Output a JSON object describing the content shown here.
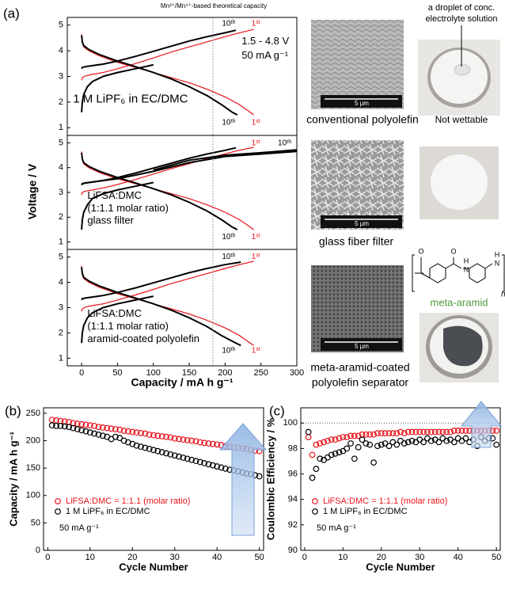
{
  "panel_labels": [
    "(a)",
    "(b)",
    "(c)"
  ],
  "chart_data": [
    {
      "type": "line",
      "xlim": [
        -20,
        300
      ],
      "ylim": [
        0.7,
        5.3
      ],
      "yticks": [
        1,
        2,
        3,
        4,
        5
      ],
      "theoretical_capacity": {
        "value": 183,
        "label": "Mn³⁺/Mn⁴⁺-based theoretical capacity"
      },
      "series": [
        {
          "color": "#e8141c",
          "x": [
            0,
            1,
            5,
            15,
            30,
            50,
            75,
            100,
            125,
            150,
            175,
            200,
            220,
            240
          ],
          "y": [
            2.85,
            2.95,
            3.02,
            3.08,
            3.15,
            3.3,
            3.5,
            3.72,
            3.95,
            4.15,
            4.35,
            4.55,
            4.7,
            4.83
          ]
        },
        {
          "color": "#e8141c",
          "x": [
            0,
            1,
            3,
            10,
            25,
            50,
            75,
            100,
            125,
            150,
            175,
            200,
            220,
            235,
            240
          ],
          "y": [
            4.65,
            4.3,
            4.15,
            4.0,
            3.8,
            3.55,
            3.35,
            3.15,
            2.95,
            2.75,
            2.5,
            2.2,
            1.9,
            1.6,
            1.5
          ]
        },
        {
          "color": "#000000",
          "x": [
            0,
            1,
            5,
            15,
            30,
            50,
            75,
            100,
            125,
            150,
            175,
            200,
            215
          ],
          "y": [
            3.3,
            3.35,
            3.38,
            3.42,
            3.48,
            3.6,
            3.78,
            3.98,
            4.18,
            4.38,
            4.55,
            4.7,
            4.8
          ]
        },
        {
          "color": "#000000",
          "x": [
            0,
            1,
            3,
            10,
            25,
            50,
            75,
            100,
            125,
            150,
            175,
            195,
            210,
            217
          ],
          "y": [
            4.6,
            4.35,
            4.2,
            4.05,
            3.85,
            3.6,
            3.38,
            3.15,
            2.9,
            2.6,
            2.25,
            1.9,
            1.6,
            1.5
          ]
        },
        {
          "color": "#000000",
          "x": [
            0,
            1,
            3,
            8,
            15,
            30,
            50,
            75,
            100
          ],
          "y": [
            1.6,
            2.0,
            2.3,
            2.6,
            2.8,
            3.0,
            3.15,
            3.3,
            3.45
          ]
        }
      ],
      "annotations": [
        {
          "text": "10ᵗʰ",
          "color": "#000000"
        },
        {
          "text": "1ˢᵗ",
          "color": "#e8141c"
        },
        {
          "text": "1.5 - 4.8 V",
          "color": "#000000"
        },
        {
          "text": "50 mA g⁻¹",
          "color": "#000000"
        },
        {
          "text": "1 M LiPF₆ in EC/DMC",
          "color": "#000000"
        },
        {
          "text": "10ᵗʰ",
          "color": "#000000"
        },
        {
          "text": "1ˢᵗ",
          "color": "#e8141c"
        }
      ]
    },
    {
      "type": "line",
      "xlim": [
        -20,
        300
      ],
      "ylim": [
        0.7,
        5.3
      ],
      "yticks": [
        1,
        2,
        3,
        4,
        5
      ],
      "ylabel": "Voltage  /  V",
      "series": [
        {
          "color": "#e8141c",
          "x": [
            0,
            1,
            5,
            15,
            30,
            50,
            75,
            100,
            125,
            150,
            175,
            200,
            220,
            240
          ],
          "y": [
            2.9,
            3.0,
            3.05,
            3.1,
            3.18,
            3.32,
            3.52,
            3.74,
            3.96,
            4.16,
            4.36,
            4.56,
            4.7,
            4.82
          ]
        },
        {
          "color": "#e8141c",
          "x": [
            0,
            1,
            3,
            10,
            25,
            50,
            75,
            100,
            125,
            150,
            175,
            200,
            220,
            235,
            240
          ],
          "y": [
            4.65,
            4.3,
            4.15,
            4.0,
            3.8,
            3.55,
            3.35,
            3.15,
            2.95,
            2.75,
            2.5,
            2.2,
            1.9,
            1.6,
            1.5
          ]
        },
        {
          "color": "#000000",
          "x": [
            0,
            1,
            5,
            15,
            30,
            50,
            75,
            100,
            150,
            200,
            250,
            300
          ],
          "y": [
            3.3,
            3.35,
            3.38,
            3.42,
            3.48,
            3.55,
            3.7,
            3.85,
            4.2,
            4.45,
            4.55,
            4.65
          ]
        },
        {
          "color": "#000000",
          "x": [
            100,
            150,
            200,
            250,
            300
          ],
          "y": [
            3.9,
            4.3,
            4.5,
            4.6,
            4.72
          ]
        },
        {
          "color": "#000000",
          "x": [
            0,
            1,
            5,
            15,
            30,
            50,
            75,
            100,
            125,
            150,
            175,
            200,
            215
          ],
          "y": [
            3.3,
            3.35,
            3.38,
            3.42,
            3.48,
            3.6,
            3.78,
            3.98,
            4.18,
            4.38,
            4.55,
            4.7,
            4.8
          ]
        },
        {
          "color": "#000000",
          "x": [
            0,
            1,
            3,
            10,
            25,
            50,
            75,
            100,
            125,
            150,
            175,
            195,
            210,
            217
          ],
          "y": [
            4.6,
            4.35,
            4.2,
            4.05,
            3.85,
            3.6,
            3.38,
            3.15,
            2.9,
            2.6,
            2.25,
            1.9,
            1.6,
            1.5
          ]
        },
        {
          "color": "#000000",
          "x": [
            0,
            1,
            3,
            8,
            15,
            30,
            50,
            75,
            100
          ],
          "y": [
            1.5,
            1.9,
            2.2,
            2.5,
            2.75,
            2.95,
            3.1,
            3.25,
            3.4
          ]
        }
      ],
      "annotations": [
        {
          "text": "1ˢᵗ",
          "color": "#e8141c"
        },
        {
          "text": "10ᵗʰ",
          "color": "#000000"
        },
        {
          "text": "LiFSA:DMC",
          "color": "#000000"
        },
        {
          "text": "(1:1.1 molar ratio)",
          "color": "#000000"
        },
        {
          "text": "glass filter",
          "color": "#000000"
        },
        {
          "text": "10ᵗʰ",
          "color": "#000000"
        },
        {
          "text": "1ˢᵗ",
          "color": "#e8141c"
        }
      ]
    },
    {
      "type": "line",
      "xlim": [
        -20,
        300
      ],
      "ylim": [
        0.7,
        5.3
      ],
      "yticks": [
        1,
        2,
        3,
        4,
        5
      ],
      "xticks": [
        0,
        50,
        100,
        150,
        200,
        250,
        300
      ],
      "xlabel": "Capacity  /  mA h g⁻¹",
      "series": [
        {
          "color": "#e8141c",
          "x": [
            0,
            1,
            5,
            15,
            30,
            50,
            75,
            100,
            125,
            150,
            175,
            200,
            220,
            240
          ],
          "y": [
            2.85,
            2.95,
            3.02,
            3.08,
            3.15,
            3.3,
            3.5,
            3.72,
            3.95,
            4.15,
            4.35,
            4.55,
            4.7,
            4.83
          ]
        },
        {
          "color": "#e8141c",
          "x": [
            0,
            1,
            3,
            10,
            25,
            50,
            75,
            100,
            125,
            150,
            175,
            200,
            220,
            235,
            240
          ],
          "y": [
            4.65,
            4.3,
            4.15,
            4.0,
            3.8,
            3.55,
            3.35,
            3.15,
            2.95,
            2.75,
            2.5,
            2.2,
            1.9,
            1.6,
            1.5
          ]
        },
        {
          "color": "#000000",
          "x": [
            0,
            1,
            5,
            15,
            30,
            50,
            75,
            100,
            125,
            150,
            175,
            200,
            222
          ],
          "y": [
            3.3,
            3.35,
            3.38,
            3.42,
            3.48,
            3.6,
            3.78,
            3.98,
            4.18,
            4.38,
            4.55,
            4.7,
            4.8
          ]
        },
        {
          "color": "#000000",
          "x": [
            0,
            1,
            3,
            10,
            25,
            50,
            75,
            100,
            125,
            150,
            175,
            195,
            215,
            222
          ],
          "y": [
            4.6,
            4.35,
            4.2,
            4.05,
            3.85,
            3.6,
            3.38,
            3.15,
            2.9,
            2.6,
            2.25,
            1.9,
            1.6,
            1.5
          ]
        },
        {
          "color": "#000000",
          "x": [
            0,
            1,
            3,
            8,
            15,
            30,
            50,
            75,
            100
          ],
          "y": [
            1.6,
            2.0,
            2.3,
            2.6,
            2.8,
            3.0,
            3.15,
            3.3,
            3.45
          ]
        }
      ],
      "annotations": [
        {
          "text": "10ᵗʰ",
          "color": "#000000"
        },
        {
          "text": "1ˢᵗ",
          "color": "#e8141c"
        },
        {
          "text": "LiFSA:DMC",
          "color": "#000000"
        },
        {
          "text": "(1:1.1 molar ratio)",
          "color": "#000000"
        },
        {
          "text": "aramid-coated polyolefin",
          "color": "#000000"
        },
        {
          "text": "10ᵗʰ",
          "color": "#000000"
        },
        {
          "text": "1ˢᵗ",
          "color": "#e8141c"
        }
      ]
    },
    {
      "type": "scatter",
      "xlabel": "Cycle Number",
      "ylabel": "Capacity  /  mA h g⁻¹",
      "xlim": [
        -1,
        51
      ],
      "ylim": [
        0,
        260
      ],
      "xticks": [
        0,
        10,
        20,
        30,
        40,
        50
      ],
      "yticks": [
        0,
        50,
        100,
        150,
        200,
        250
      ],
      "x": [
        1,
        2,
        3,
        4,
        5,
        6,
        7,
        8,
        9,
        10,
        11,
        12,
        13,
        14,
        15,
        16,
        17,
        18,
        19,
        20,
        21,
        22,
        23,
        24,
        25,
        26,
        27,
        28,
        29,
        30,
        31,
        32,
        33,
        34,
        35,
        36,
        37,
        38,
        39,
        40,
        41,
        42,
        43,
        44,
        45,
        46,
        47,
        48,
        49,
        50
      ],
      "series": [
        {
          "name": "LiFSA:DMC = 1:1.1 (molar ratio)",
          "color": "#e8141c",
          "values": [
            238,
            237,
            236,
            235,
            234,
            232,
            231,
            230,
            229,
            228,
            227,
            225,
            224,
            223,
            222,
            221,
            220,
            218,
            217,
            216,
            215,
            214,
            213,
            211,
            210,
            209,
            208,
            207,
            206,
            204,
            203,
            202,
            201,
            200,
            199,
            197,
            196,
            195,
            194,
            193,
            192,
            190,
            189,
            188,
            187,
            186,
            185,
            183,
            182,
            181
          ]
        },
        {
          "name": "1 M LiPF₆ in EC/DMC",
          "color": "#000000",
          "values": [
            228,
            227,
            227,
            226,
            225,
            223,
            221,
            219,
            217,
            215,
            213,
            211,
            209,
            207,
            203,
            207,
            205,
            200,
            197,
            194,
            191,
            189,
            187,
            185,
            183,
            181,
            179,
            177,
            175,
            173,
            171,
            169,
            167,
            165,
            163,
            161,
            159,
            157,
            155,
            153,
            151,
            149,
            147,
            146,
            144,
            142,
            140,
            139,
            137,
            135
          ]
        }
      ],
      "note": "50 mA g⁻¹"
    },
    {
      "type": "scatter",
      "xlabel": "Cycle Number",
      "ylabel": "Coulombic Efficiency / %",
      "xlim": [
        -1,
        51
      ],
      "ylim": [
        90,
        101.2
      ],
      "xticks": [
        0,
        10,
        20,
        30,
        40,
        50
      ],
      "yticks": [
        90,
        92,
        94,
        96,
        98,
        100
      ],
      "reference_line": 100,
      "x": [
        1,
        2,
        3,
        4,
        5,
        6,
        7,
        8,
        9,
        10,
        11,
        12,
        13,
        14,
        15,
        16,
        17,
        18,
        19,
        20,
        21,
        22,
        23,
        24,
        25,
        26,
        27,
        28,
        29,
        30,
        31,
        32,
        33,
        34,
        35,
        36,
        37,
        38,
        39,
        40,
        41,
        42,
        43,
        44,
        45,
        46,
        47,
        48,
        49,
        50
      ],
      "series": [
        {
          "name": "LiFSA:DMC = 1:1.1 (molar ratio)",
          "color": "#e8141c",
          "values": [
            98.9,
            97.5,
            98.3,
            98.4,
            98.5,
            98.6,
            98.7,
            98.7,
            98.8,
            98.9,
            98.9,
            99.0,
            99.0,
            99.0,
            99.1,
            99.1,
            99.1,
            99.1,
            99.2,
            99.2,
            99.2,
            99.2,
            99.2,
            99.2,
            99.3,
            99.2,
            99.3,
            99.3,
            99.3,
            99.3,
            99.3,
            99.3,
            99.3,
            99.3,
            99.3,
            99.3,
            99.3,
            99.3,
            99.4,
            99.4,
            99.4,
            99.4,
            99.4,
            99.4,
            99.4,
            99.4,
            99.4,
            99.4,
            99.4,
            99.4
          ]
        },
        {
          "name": "1 M LiPF₆ in EC/DMC",
          "color": "#000000",
          "values": [
            99.3,
            95.7,
            96.4,
            97.2,
            97.1,
            97.3,
            97.5,
            97.6,
            97.7,
            97.8,
            98.0,
            98.4,
            97.2,
            98.1,
            98.7,
            98.4,
            98.3,
            96.9,
            98.2,
            98.3,
            98.4,
            98.2,
            98.5,
            98.3,
            98.6,
            98.4,
            98.5,
            98.6,
            98.5,
            98.7,
            98.5,
            98.8,
            98.6,
            98.7,
            98.5,
            98.8,
            98.6,
            98.7,
            98.5,
            98.8,
            98.6,
            98.8,
            98.5,
            98.7,
            98.2,
            98.9,
            98.6,
            98.8,
            98.8,
            98.3
          ]
        }
      ],
      "note": "50 mA g⁻¹"
    }
  ],
  "images": [
    {
      "caption": [
        "conventional polyolefin"
      ],
      "scale_bar": "5 μm",
      "photo_note": [
        "a droplet of conc.",
        "electrolyte solution"
      ],
      "photo_caption": "Not wettable"
    },
    {
      "caption": [
        "glass fiber filter"
      ],
      "scale_bar": "5 μm"
    },
    {
      "caption": [
        "meta-aramid-coated",
        "polyolefin separator"
      ],
      "scale_bar": "5 μm"
    }
  ],
  "structure": {
    "atoms": [
      "O",
      "O",
      "N",
      "H",
      "N",
      "H"
    ],
    "repeat": "n",
    "name": "meta-aramid"
  }
}
